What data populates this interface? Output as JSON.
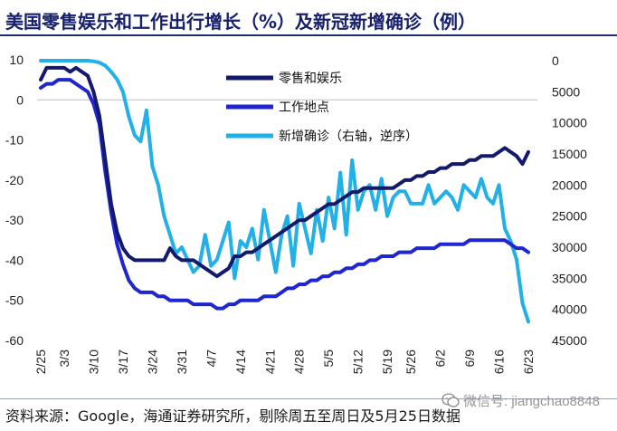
{
  "title": "美国零售娱乐和工作出行增长（%）及新冠新增确诊（例）",
  "source": "资料来源：Google，海通证券研究所，剔除周五至周日及5月25日数据",
  "watermark": "微信号: jiangchao8848",
  "chart_data": {
    "type": "line",
    "x": [
      "2/25",
      "2/26",
      "2/27",
      "3/2",
      "3/3",
      "3/4",
      "3/5",
      "3/6",
      "3/9",
      "3/10",
      "3/11",
      "3/12",
      "3/13",
      "3/16",
      "3/17",
      "3/18",
      "3/19",
      "3/20",
      "3/23",
      "3/24",
      "3/25",
      "3/26",
      "3/27",
      "3/30",
      "3/31",
      "4/1",
      "4/2",
      "4/3",
      "4/6",
      "4/7",
      "4/8",
      "4/9",
      "4/10",
      "4/13",
      "4/14",
      "4/15",
      "4/16",
      "4/17",
      "4/20",
      "4/21",
      "4/22",
      "4/23",
      "4/24",
      "4/27",
      "4/28",
      "4/29",
      "4/30",
      "5/1",
      "5/4",
      "5/5",
      "5/6",
      "5/7",
      "5/8",
      "5/11",
      "5/12",
      "5/13",
      "5/14",
      "5/15",
      "5/18",
      "5/19",
      "5/20",
      "5/21",
      "5/22",
      "5/26",
      "5/27",
      "5/28",
      "5/29",
      "6/1",
      "6/2",
      "6/3",
      "6/4",
      "6/5",
      "6/8",
      "6/9",
      "6/10",
      "6/11",
      "6/12",
      "6/15",
      "6/16",
      "6/17",
      "6/18",
      "6/19",
      "6/22",
      "6/23"
    ],
    "x_tick_labels": [
      "2/25",
      "3/3",
      "3/10",
      "3/17",
      "3/24",
      "3/31",
      "4/7",
      "4/14",
      "4/21",
      "4/28",
      "5/5",
      "5/12",
      "5/19",
      "5/26",
      "6/2",
      "6/9",
      "6/16",
      "6/23"
    ],
    "series": [
      {
        "name": "零售和娱乐",
        "axis": "left",
        "color": "#131a6b",
        "values": [
          5,
          8,
          8,
          8,
          8,
          7,
          8,
          7,
          6,
          2,
          -4,
          -15,
          -26,
          -33,
          -37,
          -39,
          -40,
          -40,
          -40,
          -40,
          -40,
          -40,
          -37,
          -39,
          -40,
          -40,
          -40,
          -41,
          -42,
          -43,
          -44,
          -43,
          -42,
          -39,
          -39,
          -38,
          -38,
          -37,
          -36,
          -35,
          -34,
          -33,
          -32,
          -31,
          -30,
          -30,
          -29,
          -28,
          -27,
          -26,
          -26,
          -25,
          -24,
          -23,
          -23,
          -22,
          -22,
          -22,
          -22,
          -22,
          -22,
          -21,
          -20,
          -20,
          -19,
          -19,
          -18,
          -18,
          -17,
          -17,
          -16,
          -16,
          -16,
          -15,
          -15,
          -14,
          -14,
          -14,
          -13,
          -12,
          -13,
          -14,
          -16,
          -13
        ]
      },
      {
        "name": "工作地点",
        "axis": "left",
        "color": "#1f26d0",
        "values": [
          3,
          4,
          4,
          5,
          5,
          5,
          4,
          3,
          2,
          -1,
          -6,
          -18,
          -28,
          -36,
          -41,
          -45,
          -47,
          -48,
          -48,
          -48,
          -49,
          -49,
          -50,
          -50,
          -50,
          -50,
          -51,
          -51,
          -51,
          -51,
          -52,
          -52,
          -51,
          -51,
          -50,
          -50,
          -50,
          -50,
          -49,
          -49,
          -49,
          -48,
          -47,
          -47,
          -46,
          -46,
          -45,
          -45,
          -44,
          -44,
          -43,
          -43,
          -42,
          -42,
          -41,
          -41,
          -40,
          -40,
          -39,
          -39,
          -39,
          -38,
          -38,
          -38,
          -37,
          -37,
          -37,
          -37,
          -36,
          -36,
          -36,
          -36,
          -36,
          -35,
          -35,
          -35,
          -35,
          -35,
          -35,
          -35,
          -36,
          -37,
          -37,
          -38
        ]
      },
      {
        "name": "新增确诊（右轴，逆序）",
        "axis": "right",
        "color": "#22b0e6",
        "values": [
          0,
          0,
          0,
          0,
          0,
          0,
          0,
          0,
          0,
          100,
          300,
          800,
          1800,
          3000,
          5000,
          9000,
          12000,
          13000,
          8000,
          17000,
          20000,
          25000,
          28000,
          31000,
          30000,
          32000,
          34000,
          33000,
          28000,
          33000,
          32000,
          29000,
          26000,
          35000,
          29000,
          30000,
          27000,
          32000,
          24000,
          29000,
          34000,
          28000,
          25000,
          33000,
          23000,
          27000,
          31000,
          24000,
          29000,
          22000,
          27000,
          18000,
          28000,
          16000,
          24000,
          21000,
          20000,
          24000,
          19000,
          25000,
          22000,
          21000,
          21000,
          23000,
          23000,
          23000,
          20000,
          23000,
          22000,
          21000,
          22000,
          24000,
          20000,
          21000,
          22000,
          19000,
          22000,
          23000,
          20000,
          27000,
          29000,
          32000,
          39000,
          42000
        ]
      }
    ],
    "y_left": {
      "range": [
        -60,
        10
      ],
      "ticks": [
        10,
        0,
        -10,
        -20,
        -30,
        -40,
        -50,
        -60
      ]
    },
    "y_right": {
      "range": [
        0,
        45000
      ],
      "inverted": true,
      "ticks": [
        0,
        5000,
        10000,
        15000,
        20000,
        25000,
        30000,
        35000,
        40000,
        45000
      ]
    },
    "legend": {
      "position": "top-center",
      "items": [
        "零售和娱乐",
        "工作地点",
        "新增确诊（右轴，逆序）"
      ]
    },
    "grid": false
  }
}
